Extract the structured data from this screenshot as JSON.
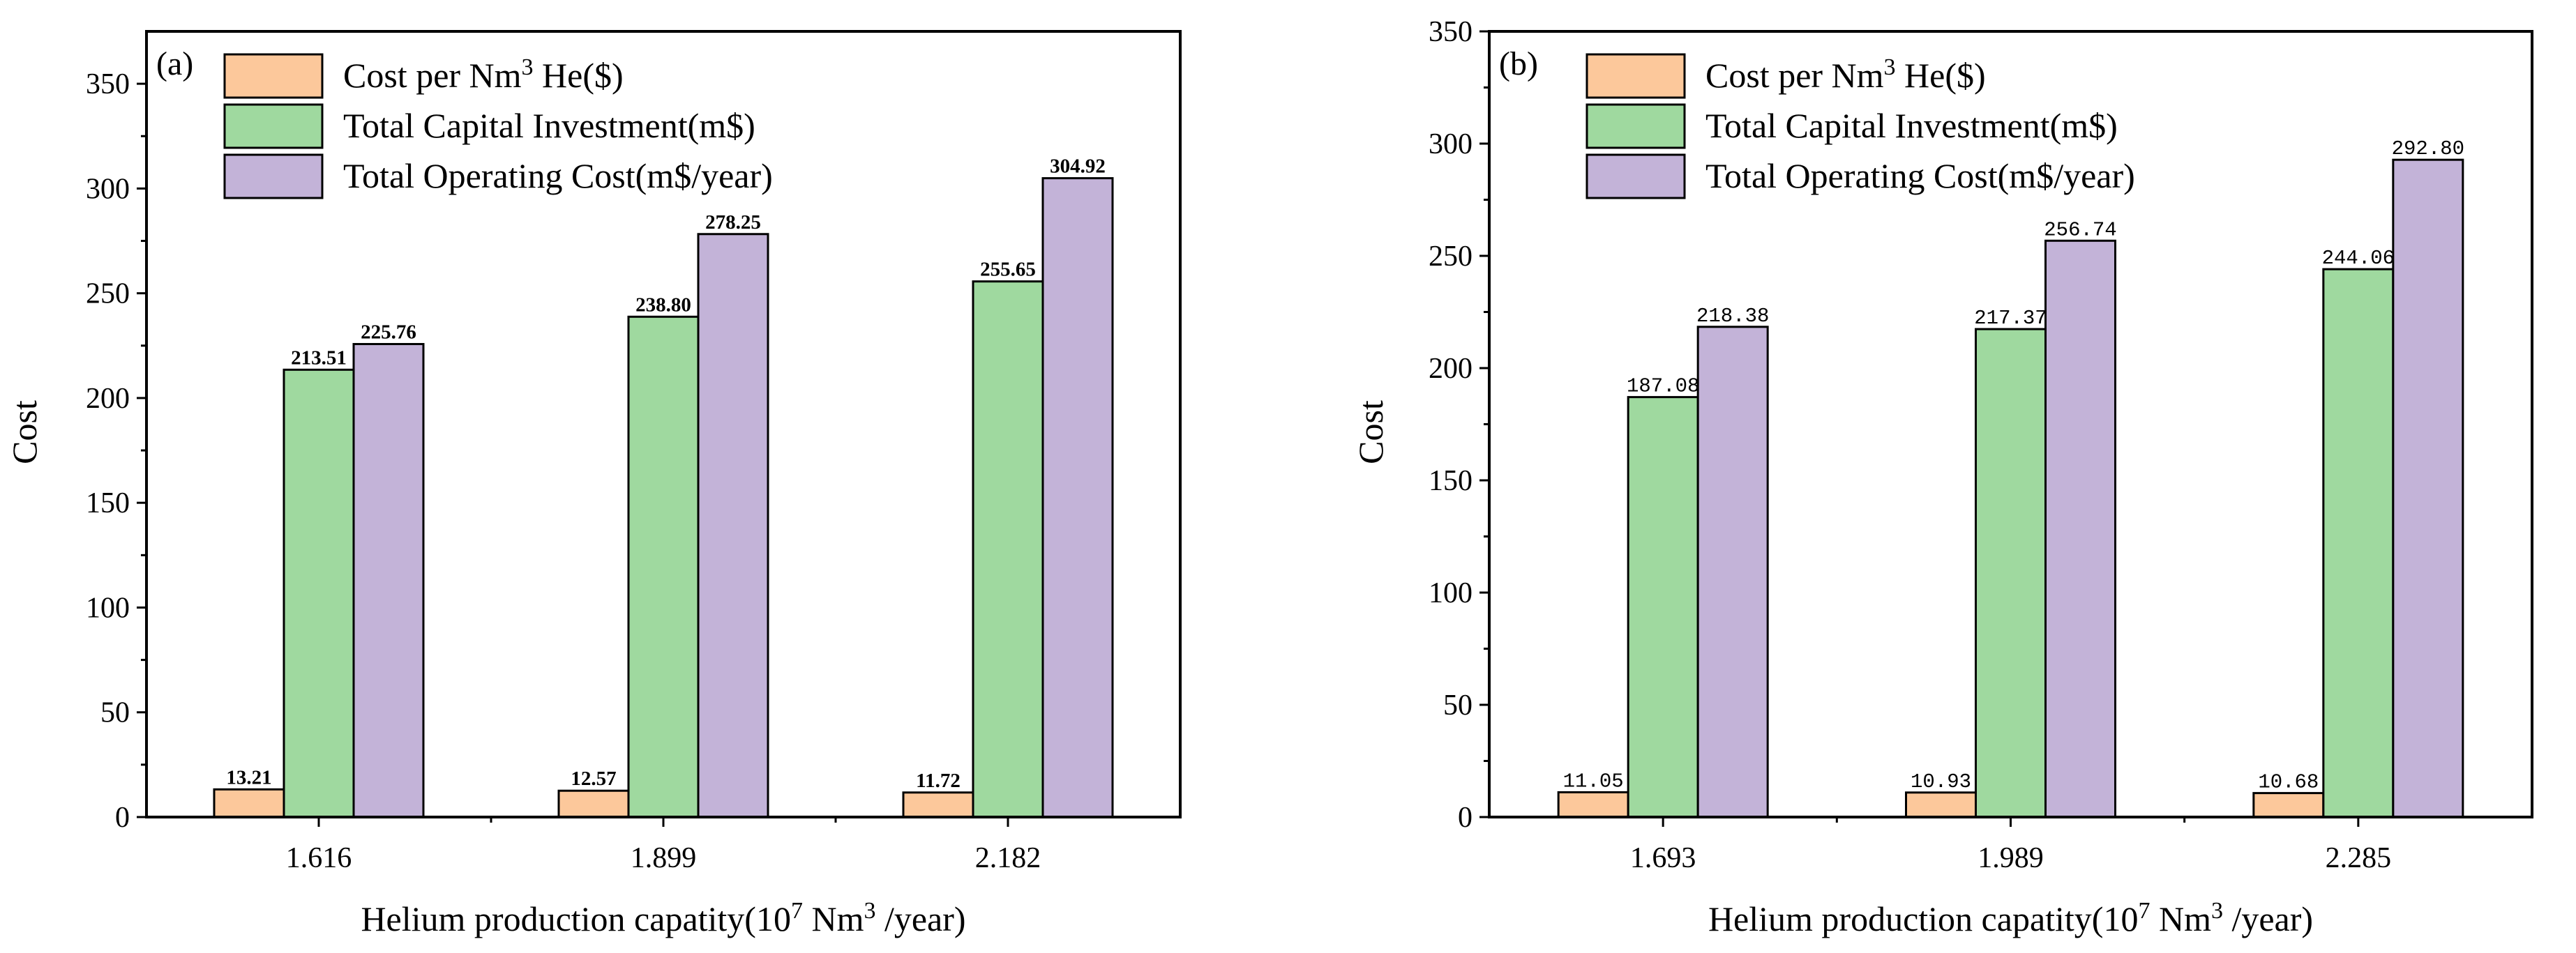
{
  "chart_data": [
    {
      "type": "bar",
      "panel_label": "(a)",
      "categories": [
        "1.616",
        "1.899",
        "2.182"
      ],
      "series": [
        {
          "name": "Cost per Nm3 He($)",
          "legend_main": "Cost per Nm",
          "legend_sup": "3",
          "legend_tail": " He($)",
          "color": "#fcc89b",
          "values": [
            13.21,
            12.57,
            11.72
          ],
          "labels": [
            "13.21",
            "12.57",
            "11.72"
          ]
        },
        {
          "name": "Total Capital Investment(m$)",
          "legend_main": "Total Capital Investment(m$)",
          "legend_sup": "",
          "legend_tail": "",
          "color": "#9fd99f",
          "values": [
            213.51,
            238.8,
            255.65
          ],
          "labels": [
            "213.51",
            "238.80",
            "255.65"
          ]
        },
        {
          "name": "Total Operating Cost(m$/year)",
          "legend_main": "Total Operating Cost(m$/year)",
          "legend_sup": "",
          "legend_tail": "",
          "color": "#c3b3d8",
          "values": [
            225.76,
            278.25,
            304.92
          ],
          "labels": [
            "225.76",
            "278.25",
            "304.92"
          ]
        }
      ],
      "ylabel": "Cost",
      "xlabel_pre": "Helium production capatity(10",
      "xlabel_sup1": "7",
      "xlabel_mid": " Nm",
      "xlabel_sup2": "3",
      "xlabel_post": " /year)",
      "ylim": [
        0,
        375
      ],
      "yticks": [
        0,
        50,
        100,
        150,
        200,
        250,
        300,
        350
      ],
      "legend_position": "top-left"
    },
    {
      "type": "bar",
      "panel_label": "(b)",
      "categories": [
        "1.693",
        "1.989",
        "2.285"
      ],
      "series": [
        {
          "name": "Cost per Nm3 He($)",
          "legend_main": "Cost per Nm",
          "legend_sup": "3",
          "legend_tail": " He($)",
          "color": "#fcc89b",
          "values": [
            11.05,
            10.93,
            10.68
          ],
          "labels": [
            "11.05",
            "10.93",
            "10.68"
          ]
        },
        {
          "name": "Total Capital Investment(m$)",
          "legend_main": "Total Capital Investment(m$)",
          "legend_sup": "",
          "legend_tail": "",
          "color": "#9fd99f",
          "values": [
            187.08,
            217.37,
            244.06
          ],
          "labels": [
            "187.08",
            "217.37",
            "244.06"
          ]
        },
        {
          "name": "Total Operating Cost(m$/year)",
          "legend_main": "Total Operating Cost(m$/year)",
          "legend_sup": "",
          "legend_tail": "",
          "color": "#c3b3d8",
          "values": [
            218.38,
            256.74,
            292.8
          ],
          "labels": [
            "218.38",
            "256.74",
            "292.80"
          ]
        }
      ],
      "ylabel": "Cost",
      "xlabel_pre": "Helium production capatity(10",
      "xlabel_sup1": "7",
      "xlabel_mid": " Nm",
      "xlabel_sup2": "3",
      "xlabel_post": " /year)",
      "ylim": [
        0,
        350
      ],
      "yticks": [
        0,
        50,
        100,
        150,
        200,
        250,
        300,
        350
      ],
      "legend_position": "top-left"
    }
  ]
}
